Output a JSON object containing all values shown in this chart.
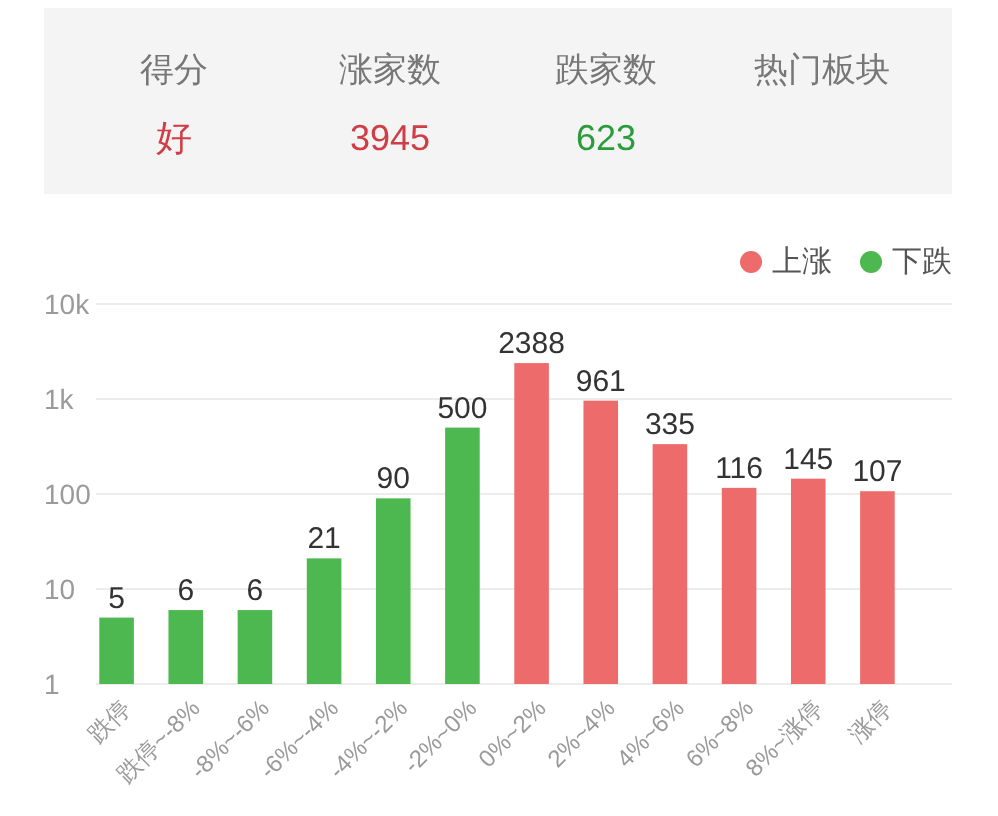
{
  "chart_data": [
    {
      "type": "other",
      "categories": [
        "得分",
        "涨家数",
        "跌家数",
        "热门板块"
      ],
      "value_labels": [
        "好",
        "3945",
        "623",
        null
      ]
    },
    {
      "type": "bar",
      "categories": [
        "跌停",
        "跌停~-8%",
        "-8%~-6%",
        "-6%~-4%",
        "-4%~-2%",
        "-2%~0%",
        "0%~2%",
        "2%~4%",
        "4%~6%",
        "6%~8%",
        "8%~涨停",
        "涨停"
      ],
      "series": [
        {
          "name": "上涨",
          "color": "#ee6b6b",
          "values": [
            null,
            null,
            null,
            null,
            null,
            null,
            2388,
            961,
            335,
            116,
            145,
            107
          ]
        },
        {
          "name": "下跌",
          "color": "#4cb84f",
          "values": [
            5,
            6,
            6,
            21,
            90,
            500,
            null,
            null,
            null,
            null,
            null,
            null
          ]
        }
      ],
      "stacked": true,
      "log": true,
      "ylim": [
        1,
        10000
      ],
      "yticks": [
        1,
        10,
        100,
        {
          "value": 1000,
          "label": "1k"
        },
        {
          "value": 10000,
          "label": "10k"
        }
      ],
      "grid": "y",
      "legend": "top right",
      "data_labels": true
    }
  ]
}
